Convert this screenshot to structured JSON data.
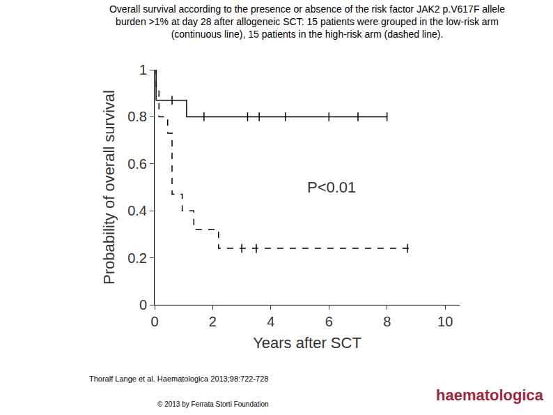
{
  "chart_data": {
    "type": "step",
    "title": [
      "Overall survival according to the presence or absence of the risk factor JAK2 p.V617F allele",
      "burden >1% at day 28 after allogeneic SCT: 15 patients were grouped in the low-risk arm",
      "(continuous line), 15 patients in the high-risk arm (dashed line)."
    ],
    "x_label": "Years after SCT",
    "y_label": "Probability of overall survival",
    "annotations": [
      {
        "text": "P<0.01",
        "x": 5.2,
        "y": 0.5
      }
    ],
    "source": "Thoralf Lange et al. Haematologica 2013;98:722-728",
    "copyright": "© 2013 by Ferrata Storti Foundation",
    "logo": "haematologica",
    "xlim": [
      0,
      10.5
    ],
    "xticks": [
      0,
      2,
      4,
      6,
      8,
      10
    ],
    "ylim": [
      0,
      1
    ],
    "yticks": [
      0,
      0.2,
      0.4,
      0.6,
      0.8,
      1
    ],
    "grid": false,
    "series": [
      {
        "color": "#000000",
        "line_style": "solid",
        "x": [
          0,
          0.05,
          1.1,
          8.0
        ],
        "values": [
          1,
          0.87,
          0.8,
          0.8
        ],
        "censor_x": [
          0.6,
          1.7,
          3.2,
          3.6,
          4.5,
          6.0,
          7.0,
          8.0
        ],
        "censor_values": [
          0.87,
          0.8,
          0.8,
          0.8,
          0.8,
          0.8,
          0.8,
          0.8
        ]
      },
      {
        "color": "#000000",
        "line_style": "dashed",
        "x": [
          0,
          0.05,
          0.15,
          0.45,
          0.6,
          0.95,
          1.35,
          2.2,
          8.8
        ],
        "values": [
          1,
          0.93,
          0.8,
          0.73,
          0.47,
          0.4,
          0.32,
          0.24,
          0.24
        ],
        "censor_x": [
          3.0,
          3.5,
          8.7
        ],
        "censor_values": [
          0.24,
          0.24,
          0.24
        ]
      }
    ]
  }
}
